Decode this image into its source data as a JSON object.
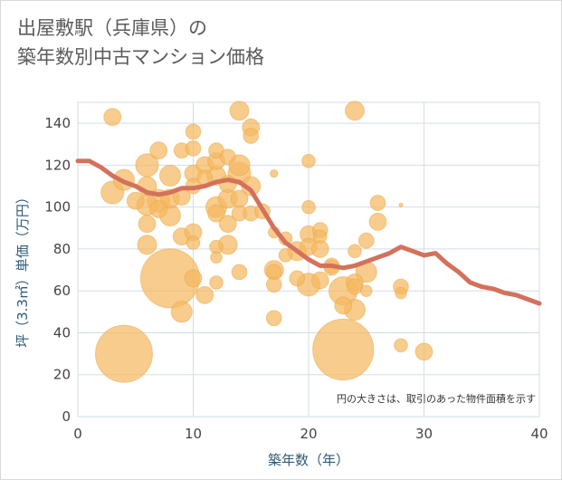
{
  "title_lines": [
    "出屋敷駅（兵庫県）の",
    "築年数別中古マンション価格"
  ],
  "chart_data": {
    "type": "scatter",
    "title": "出屋敷駅（兵庫県）の築年数別中古マンション価格",
    "xlabel": "築年数（年）",
    "ylabel": "坪（3.3㎡）単価（万円）",
    "xlim": [
      0,
      40
    ],
    "ylim": [
      0,
      150
    ],
    "x_ticks": [
      0,
      10,
      20,
      30,
      40
    ],
    "y_ticks": [
      0,
      20,
      40,
      60,
      80,
      100,
      120,
      140
    ],
    "grid": true,
    "note": "円の大きさは、取引のあった物件面積を示す",
    "colors": {
      "bubble": "#f5b95f",
      "bubble_edge": "#e8a548",
      "trend": "#d4715c",
      "grid": "#d2dde6",
      "axis_text": "#2f5b78"
    },
    "bubbles": [
      {
        "x": 3,
        "y": 143,
        "s": 9
      },
      {
        "x": 3,
        "y": 107,
        "s": 12
      },
      {
        "x": 4,
        "y": 113,
        "s": 11
      },
      {
        "x": 4,
        "y": 30,
        "s": 30
      },
      {
        "x": 5,
        "y": 103,
        "s": 9
      },
      {
        "x": 6,
        "y": 120,
        "s": 12
      },
      {
        "x": 6,
        "y": 110,
        "s": 10
      },
      {
        "x": 6,
        "y": 101,
        "s": 11
      },
      {
        "x": 6,
        "y": 92,
        "s": 9
      },
      {
        "x": 6,
        "y": 82,
        "s": 10
      },
      {
        "x": 7,
        "y": 127,
        "s": 9
      },
      {
        "x": 7,
        "y": 103,
        "s": 12
      },
      {
        "x": 7,
        "y": 99,
        "s": 9
      },
      {
        "x": 8,
        "y": 115,
        "s": 11
      },
      {
        "x": 8,
        "y": 104,
        "s": 10
      },
      {
        "x": 8,
        "y": 96,
        "s": 11
      },
      {
        "x": 8,
        "y": 66,
        "s": 31
      },
      {
        "x": 9,
        "y": 127,
        "s": 8
      },
      {
        "x": 9,
        "y": 105,
        "s": 9
      },
      {
        "x": 9,
        "y": 86,
        "s": 9
      },
      {
        "x": 9,
        "y": 50,
        "s": 11
      },
      {
        "x": 10,
        "y": 136,
        "s": 8
      },
      {
        "x": 10,
        "y": 128,
        "s": 8
      },
      {
        "x": 10,
        "y": 116,
        "s": 9
      },
      {
        "x": 10,
        "y": 110,
        "s": 8
      },
      {
        "x": 10,
        "y": 88,
        "s": 9
      },
      {
        "x": 10,
        "y": 83,
        "s": 7
      },
      {
        "x": 10,
        "y": 66,
        "s": 9
      },
      {
        "x": 11,
        "y": 120,
        "s": 9
      },
      {
        "x": 11,
        "y": 114,
        "s": 8
      },
      {
        "x": 11,
        "y": 58,
        "s": 9
      },
      {
        "x": 12,
        "y": 127,
        "s": 8
      },
      {
        "x": 12,
        "y": 122,
        "s": 9
      },
      {
        "x": 12,
        "y": 115,
        "s": 10
      },
      {
        "x": 12,
        "y": 100,
        "s": 11
      },
      {
        "x": 12,
        "y": 97,
        "s": 9
      },
      {
        "x": 12,
        "y": 81,
        "s": 7
      },
      {
        "x": 12,
        "y": 76,
        "s": 6
      },
      {
        "x": 12,
        "y": 64,
        "s": 7
      },
      {
        "x": 13,
        "y": 124,
        "s": 8
      },
      {
        "x": 13,
        "y": 111,
        "s": 9
      },
      {
        "x": 13,
        "y": 104,
        "s": 10
      },
      {
        "x": 13,
        "y": 92,
        "s": 9
      },
      {
        "x": 13,
        "y": 82,
        "s": 10
      },
      {
        "x": 14,
        "y": 146,
        "s": 10
      },
      {
        "x": 14,
        "y": 120,
        "s": 11
      },
      {
        "x": 14,
        "y": 116,
        "s": 12
      },
      {
        "x": 14,
        "y": 104,
        "s": 9
      },
      {
        "x": 14,
        "y": 97,
        "s": 8
      },
      {
        "x": 14,
        "y": 69,
        "s": 8
      },
      {
        "x": 15,
        "y": 138,
        "s": 9
      },
      {
        "x": 15,
        "y": 134,
        "s": 8
      },
      {
        "x": 15,
        "y": 110,
        "s": 10
      },
      {
        "x": 15,
        "y": 97,
        "s": 8
      },
      {
        "x": 16,
        "y": 98,
        "s": 8
      },
      {
        "x": 17,
        "y": 116,
        "s": 4
      },
      {
        "x": 17,
        "y": 88,
        "s": 6
      },
      {
        "x": 17,
        "y": 70,
        "s": 10
      },
      {
        "x": 17,
        "y": 69,
        "s": 8
      },
      {
        "x": 17,
        "y": 63,
        "s": 8
      },
      {
        "x": 17,
        "y": 47,
        "s": 8
      },
      {
        "x": 18,
        "y": 85,
        "s": 7
      },
      {
        "x": 18,
        "y": 77,
        "s": 7
      },
      {
        "x": 19,
        "y": 79,
        "s": 10
      },
      {
        "x": 19,
        "y": 66,
        "s": 8
      },
      {
        "x": 20,
        "y": 122,
        "s": 7
      },
      {
        "x": 20,
        "y": 100,
        "s": 7
      },
      {
        "x": 20,
        "y": 87,
        "s": 9
      },
      {
        "x": 20,
        "y": 81,
        "s": 9
      },
      {
        "x": 20,
        "y": 63,
        "s": 12
      },
      {
        "x": 21,
        "y": 89,
        "s": 8
      },
      {
        "x": 21,
        "y": 86,
        "s": 7
      },
      {
        "x": 21,
        "y": 80,
        "s": 9
      },
      {
        "x": 21,
        "y": 65,
        "s": 9
      },
      {
        "x": 22,
        "y": 72,
        "s": 8
      },
      {
        "x": 22,
        "y": 71,
        "s": 8
      },
      {
        "x": 23,
        "y": 60,
        "s": 15
      },
      {
        "x": 23,
        "y": 53,
        "s": 9
      },
      {
        "x": 23,
        "y": 32,
        "s": 32
      },
      {
        "x": 24,
        "y": 146,
        "s": 10
      },
      {
        "x": 24,
        "y": 79,
        "s": 7
      },
      {
        "x": 24,
        "y": 64,
        "s": 9
      },
      {
        "x": 24,
        "y": 62,
        "s": 8
      },
      {
        "x": 24,
        "y": 51,
        "s": 11
      },
      {
        "x": 25,
        "y": 84,
        "s": 8
      },
      {
        "x": 25,
        "y": 69,
        "s": 11
      },
      {
        "x": 25,
        "y": 60,
        "s": 6
      },
      {
        "x": 26,
        "y": 102,
        "s": 8
      },
      {
        "x": 26,
        "y": 93,
        "s": 9
      },
      {
        "x": 28,
        "y": 101,
        "s": 2
      },
      {
        "x": 28,
        "y": 62,
        "s": 8
      },
      {
        "x": 28,
        "y": 59,
        "s": 6
      },
      {
        "x": 28,
        "y": 34,
        "s": 7
      },
      {
        "x": 30,
        "y": 31,
        "s": 9
      }
    ],
    "trend": {
      "x": [
        0,
        1,
        2,
        3,
        4,
        5,
        6,
        7,
        8,
        9,
        10,
        11,
        12,
        13,
        14,
        15,
        16,
        17,
        18,
        19,
        20,
        21,
        22,
        23,
        24,
        25,
        26,
        27,
        28,
        29,
        30,
        31,
        32,
        33,
        34,
        35,
        36,
        37,
        38,
        39,
        40
      ],
      "y": [
        122,
        122,
        119,
        115,
        112,
        110,
        107,
        106,
        107,
        109,
        109,
        110,
        112,
        113,
        112,
        108,
        99,
        90,
        83,
        79,
        75,
        72,
        72,
        71,
        72,
        74,
        76,
        78,
        81,
        79,
        77,
        78,
        73,
        69,
        64,
        62,
        61,
        59,
        58,
        56,
        54
      ]
    }
  }
}
